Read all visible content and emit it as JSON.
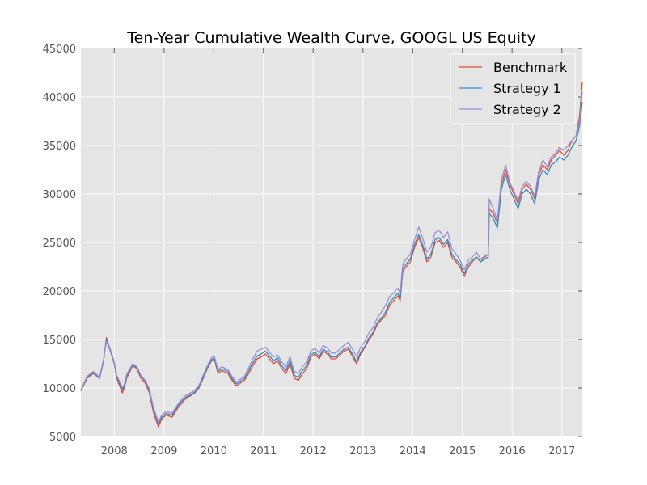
{
  "chart_data": {
    "type": "line",
    "title": "Ten-Year Cumulative Wealth Curve, GOOGL US Equity",
    "xlabel": "",
    "ylabel": "",
    "x_range": [
      "2007-05-01",
      "2017-05-31"
    ],
    "ylim": [
      5000,
      45000
    ],
    "y_ticks": [
      5000,
      10000,
      15000,
      20000,
      25000,
      30000,
      35000,
      40000,
      45000
    ],
    "x_ticks": [
      "2008",
      "2009",
      "2010",
      "2011",
      "2012",
      "2013",
      "2014",
      "2015",
      "2016",
      "2017"
    ],
    "grid": true,
    "legend_position": "top-right",
    "background": "#e5e5e5",
    "x": [
      "2007-05-01",
      "2007-06-15",
      "2007-08-01",
      "2007-09-15",
      "2007-10-15",
      "2007-11-05",
      "2007-12-01",
      "2008-01-01",
      "2008-01-20",
      "2008-03-01",
      "2008-03-15",
      "2008-04-01",
      "2008-05-15",
      "2008-06-15",
      "2008-07-15",
      "2008-08-15",
      "2008-09-15",
      "2008-10-15",
      "2008-11-20",
      "2008-12-15",
      "2009-01-15",
      "2009-03-01",
      "2009-04-15",
      "2009-05-15",
      "2009-06-15",
      "2009-07-15",
      "2009-08-15",
      "2009-09-15",
      "2009-10-15",
      "2009-11-15",
      "2009-12-15",
      "2010-01-05",
      "2010-02-01",
      "2010-03-01",
      "2010-04-15",
      "2010-05-15",
      "2010-06-15",
      "2010-07-15",
      "2010-08-15",
      "2010-09-15",
      "2010-10-15",
      "2010-11-15",
      "2010-12-15",
      "2011-01-15",
      "2011-02-15",
      "2011-03-15",
      "2011-04-15",
      "2011-05-15",
      "2011-06-15",
      "2011-07-15",
      "2011-08-15",
      "2011-09-15",
      "2011-10-15",
      "2011-11-15",
      "2011-12-15",
      "2012-01-15",
      "2012-02-15",
      "2012-03-15",
      "2012-04-15",
      "2012-05-15",
      "2012-06-15",
      "2012-07-15",
      "2012-08-15",
      "2012-09-15",
      "2012-10-15",
      "2012-11-15",
      "2012-12-15",
      "2013-01-15",
      "2013-02-15",
      "2013-03-15",
      "2013-04-15",
      "2013-05-15",
      "2013-06-15",
      "2013-07-15",
      "2013-08-15",
      "2013-09-15",
      "2013-10-01",
      "2013-10-20",
      "2013-11-15",
      "2013-12-15",
      "2014-01-15",
      "2014-02-15",
      "2014-03-15",
      "2014-04-15",
      "2014-05-15",
      "2014-06-15",
      "2014-07-15",
      "2014-08-15",
      "2014-09-15",
      "2014-10-15",
      "2014-11-15",
      "2014-12-15",
      "2015-01-15",
      "2015-02-15",
      "2015-03-15",
      "2015-04-15",
      "2015-05-15",
      "2015-06-15",
      "2015-07-10",
      "2015-07-17",
      "2015-08-15",
      "2015-09-15",
      "2015-10-15",
      "2015-11-15",
      "2015-12-15",
      "2016-01-15",
      "2016-02-15",
      "2016-03-15",
      "2016-04-15",
      "2016-05-15",
      "2016-06-15",
      "2016-07-15",
      "2016-08-15",
      "2016-09-15",
      "2016-10-15",
      "2016-11-15",
      "2016-12-15",
      "2017-01-15",
      "2017-02-15",
      "2017-03-15",
      "2017-04-15",
      "2017-05-10",
      "2017-05-31"
    ],
    "series": [
      {
        "name": "Benchmark",
        "color": "#e24a33",
        "values": [
          9700,
          11000,
          11500,
          11000,
          12800,
          15200,
          14000,
          12500,
          11000,
          9500,
          10000,
          11000,
          12300,
          12000,
          11000,
          10500,
          9500,
          7500,
          6000,
          6800,
          7200,
          7000,
          8000,
          8500,
          9000,
          9200,
          9500,
          10000,
          11000,
          12000,
          12800,
          13000,
          11500,
          11800,
          11500,
          10800,
          10200,
          10500,
          10800,
          11500,
          12300,
          13000,
          13200,
          13500,
          13000,
          12500,
          12800,
          12000,
          11500,
          12500,
          11000,
          10800,
          11500,
          12000,
          13200,
          13500,
          13000,
          13800,
          13500,
          13000,
          13000,
          13400,
          13800,
          14000,
          13300,
          12500,
          13500,
          14200,
          15000,
          15500,
          16500,
          17000,
          17500,
          18500,
          19000,
          19500,
          19000,
          22000,
          22500,
          23000,
          24500,
          25500,
          24500,
          23000,
          23500,
          25000,
          25200,
          24500,
          25000,
          23500,
          23000,
          22500,
          21500,
          22500,
          23000,
          23500,
          23000,
          23500,
          23800,
          28500,
          28000,
          27000,
          31000,
          32500,
          31000,
          30000,
          29000,
          30500,
          31000,
          30500,
          29500,
          32000,
          33000,
          32500,
          33500,
          34000,
          34500,
          34000,
          34500,
          35500,
          36000,
          38000,
          41500
        ]
      },
      {
        "name": "Strategy 1",
        "color": "#348abd",
        "values": [
          9800,
          11100,
          11600,
          11000,
          12900,
          15000,
          13900,
          12600,
          11200,
          9800,
          10200,
          11200,
          12400,
          12100,
          11200,
          10700,
          9700,
          7800,
          6300,
          7000,
          7400,
          7200,
          8200,
          8700,
          9100,
          9300,
          9600,
          10100,
          11100,
          12100,
          12900,
          13100,
          11700,
          12000,
          11700,
          11000,
          10400,
          10700,
          11000,
          11800,
          12600,
          13300,
          13500,
          13800,
          13300,
          12800,
          13100,
          12300,
          11800,
          12800,
          11300,
          11100,
          11800,
          12300,
          13400,
          13700,
          13200,
          14000,
          13700,
          13200,
          13200,
          13600,
          14000,
          14200,
          13500,
          12700,
          13700,
          14300,
          15200,
          15700,
          16700,
          17200,
          17800,
          18800,
          19300,
          19800,
          19200,
          22300,
          22800,
          23300,
          24800,
          25800,
          24800,
          23300,
          23800,
          25300,
          25500,
          24800,
          25300,
          23800,
          23200,
          22800,
          21800,
          22800,
          23200,
          23500,
          23000,
          23300,
          23500,
          28000,
          27500,
          26500,
          30500,
          32000,
          30500,
          29500,
          28500,
          30000,
          30500,
          30000,
          29000,
          31500,
          32500,
          32000,
          33000,
          33300,
          33800,
          33500,
          34000,
          34800,
          35500,
          37000,
          39500
        ]
      },
      {
        "name": "Strategy 2",
        "color": "#988ed5",
        "values": [
          9800,
          11200,
          11700,
          11100,
          13000,
          14800,
          14100,
          12700,
          11300,
          10000,
          10400,
          11400,
          12500,
          12200,
          11300,
          10800,
          9900,
          8000,
          6500,
          7200,
          7600,
          7400,
          8400,
          8900,
          9300,
          9500,
          9800,
          10300,
          11300,
          12300,
          13100,
          13300,
          11900,
          12200,
          11900,
          11200,
          10600,
          10900,
          11200,
          12100,
          13000,
          13800,
          14000,
          14200,
          13700,
          13200,
          13400,
          12700,
          12200,
          13200,
          11700,
          11500,
          12200,
          12700,
          13800,
          14100,
          13600,
          14400,
          14100,
          13600,
          13600,
          14000,
          14400,
          14700,
          14000,
          13200,
          14200,
          14800,
          15700,
          16200,
          17200,
          17800,
          18500,
          19400,
          19800,
          20300,
          19700,
          22800,
          23300,
          23800,
          25300,
          26600,
          25500,
          24000,
          24500,
          26000,
          26300,
          25500,
          26100,
          24400,
          23800,
          23200,
          22200,
          23200,
          23500,
          24000,
          23300,
          23600,
          23800,
          29500,
          28500,
          27300,
          31500,
          33000,
          31200,
          30300,
          29300,
          30800,
          31300,
          30800,
          29800,
          32300,
          33500,
          32800,
          33800,
          34200,
          34800,
          34500,
          35000,
          35500,
          36000,
          37500,
          40500
        ]
      }
    ]
  }
}
